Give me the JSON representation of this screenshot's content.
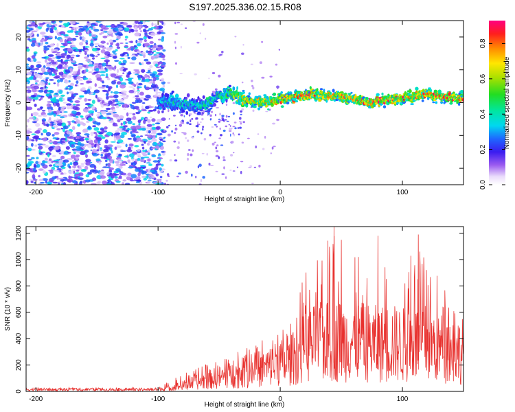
{
  "title": "S197.2025.336.02.15.R08",
  "colors": {
    "snr_line": "#e8322f",
    "axis": "#000000",
    "background": "#ffffff"
  },
  "chart_data": [
    {
      "type": "heatmap",
      "name": "spectrogram",
      "xlabel": "Height of straight line (km)",
      "ylabel": "Frequency (Hz)",
      "xlim": [
        -208,
        150
      ],
      "ylim": [
        -25,
        25
      ],
      "x_ticks": [
        -200,
        -100,
        0,
        100
      ],
      "y_ticks": [
        -20,
        -10,
        0,
        10,
        20
      ],
      "colorbar": {
        "label": "Normalized spectral amplitude",
        "range": [
          0,
          0.93
        ],
        "ticks": [
          0.0,
          0.2,
          0.4,
          0.6,
          0.8
        ]
      },
      "noise_region_x": [
        -208,
        -95
      ],
      "noise_level": "low (0.1-0.35) scattered across all frequencies",
      "ridge": {
        "description": "Narrow high-amplitude band near 0 Hz from -100 km to 150 km",
        "x": [
          -100,
          -85,
          -70,
          -60,
          -50,
          -40,
          -30,
          -20,
          -10,
          0,
          10,
          20,
          30,
          40,
          50,
          60,
          70,
          80,
          90,
          100,
          110,
          120,
          130,
          140,
          150
        ],
        "center_hz": [
          0.5,
          0,
          -1,
          -0.5,
          2,
          3,
          1,
          0.5,
          0,
          1,
          1.5,
          2.5,
          2.5,
          2,
          2,
          1,
          0,
          0.5,
          1,
          1.5,
          2,
          2.5,
          2,
          1.5,
          1.5
        ],
        "peak_amplitude": [
          0.35,
          0.45,
          0.4,
          0.5,
          0.45,
          0.6,
          0.7,
          0.75,
          0.75,
          0.8,
          0.8,
          0.85,
          0.8,
          0.8,
          0.75,
          0.8,
          0.85,
          0.9,
          0.85,
          0.8,
          0.8,
          0.8,
          0.85,
          0.85,
          0.8
        ]
      }
    },
    {
      "type": "line",
      "name": "snr",
      "xlabel": "Height of straight line (km)",
      "ylabel": "SNR (10 * v/v)",
      "xlim": [
        -208,
        150
      ],
      "ylim": [
        0,
        1250
      ],
      "x_ticks": [
        -200,
        -100,
        0,
        100
      ],
      "y_ticks": [
        0,
        200,
        400,
        600,
        800,
        1000,
        1200
      ],
      "envelope": {
        "x": [
          -208,
          -100,
          -90,
          -80,
          -70,
          -60,
          -50,
          -40,
          -30,
          -20,
          -10,
          0,
          5,
          10,
          20,
          30,
          40,
          50,
          60,
          70,
          80,
          90,
          100,
          110,
          120,
          130,
          140,
          150
        ],
        "typical": [
          15,
          15,
          30,
          50,
          75,
          100,
          120,
          140,
          160,
          190,
          210,
          260,
          220,
          280,
          380,
          420,
          430,
          440,
          430,
          420,
          410,
          420,
          400,
          410,
          420,
          380,
          360,
          350
        ],
        "peak": [
          30,
          30,
          90,
          140,
          170,
          220,
          230,
          300,
          340,
          390,
          400,
          500,
          450,
          560,
          900,
          1000,
          1250,
          1150,
          1020,
          1000,
          1180,
          980,
          950,
          1190,
          1000,
          860,
          700,
          620
        ]
      },
      "notable_peaks": [
        {
          "x": 44,
          "y": 1250
        },
        {
          "x": 113,
          "y": 1190
        },
        {
          "x": 80,
          "y": 1180
        },
        {
          "x": 50,
          "y": 1150
        },
        {
          "x": 64,
          "y": 1020
        }
      ]
    }
  ]
}
